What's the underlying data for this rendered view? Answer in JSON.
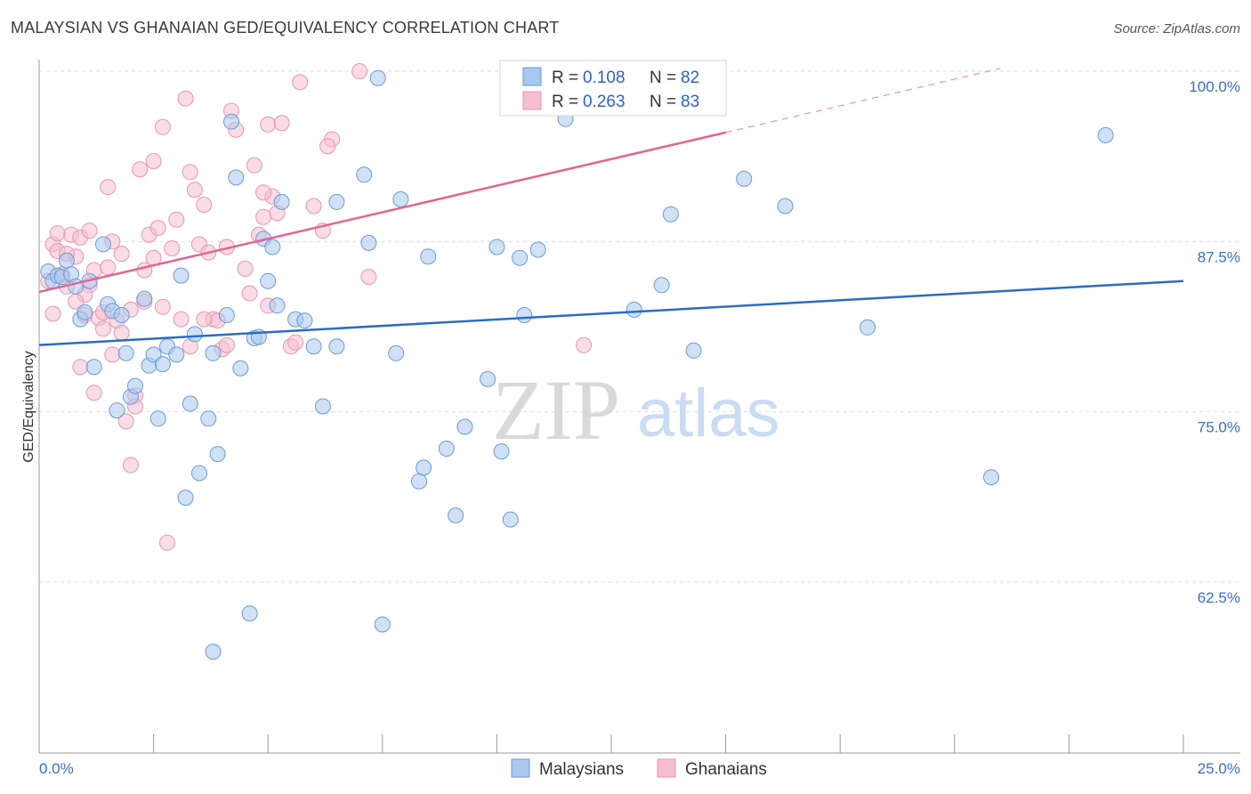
{
  "title": "MALAYSIAN VS GHANAIAN GED/EQUIVALENCY CORRELATION CHART",
  "source": "Source: ZipAtlas.com",
  "watermark": {
    "zip": "ZIP",
    "atlas": "atlas"
  },
  "colors": {
    "blue_fill": "#a9c8ef",
    "blue_stroke": "#6c9ad6",
    "blue_line": "#2b6cc4",
    "pink_fill": "#f6bfd0",
    "pink_stroke": "#e895b1",
    "pink_line": "#e0668f",
    "tick_text": "#3a6fc4",
    "grid": "#dddddd"
  },
  "legend": {
    "rows": [
      {
        "r_label": "R =",
        "r_value": "0.108",
        "n_label": "N =",
        "n_value": "82"
      },
      {
        "r_label": "R =",
        "r_value": "0.263",
        "n_label": "N =",
        "n_value": "83"
      }
    ]
  },
  "bottom_legend": [
    "Malaysians",
    "Ghanaians"
  ],
  "chart_data": {
    "type": "scatter",
    "title": "MALAYSIAN VS GHANAIAN GED/EQUIVALENCY CORRELATION CHART",
    "xlabel": "",
    "ylabel": "GED/Equivalency",
    "xlim": [
      0,
      25
    ],
    "ylim": [
      52.5,
      102.5
    ],
    "x_tick_labels": [
      "0.0%",
      "25.0%"
    ],
    "y_ticks": [
      62.5,
      75.0,
      87.5,
      100.0
    ],
    "y_tick_labels": [
      "62.5%",
      "75.0%",
      "87.5%",
      "100.0%"
    ],
    "grid": true,
    "legend_position": "top",
    "series": [
      {
        "name": "Malaysians",
        "r": 0.108,
        "n": 82,
        "trend": {
          "x": [
            0,
            25
          ],
          "y": [
            79.9,
            84.6
          ]
        },
        "points": [
          [
            0.2,
            85.3
          ],
          [
            0.3,
            84.6
          ],
          [
            0.4,
            85.0
          ],
          [
            0.5,
            84.9
          ],
          [
            0.6,
            86.1
          ],
          [
            0.7,
            85.1
          ],
          [
            0.8,
            84.2
          ],
          [
            0.9,
            81.8
          ],
          [
            1.0,
            82.3
          ],
          [
            1.1,
            84.6
          ],
          [
            1.2,
            78.3
          ],
          [
            1.4,
            87.3
          ],
          [
            1.5,
            82.9
          ],
          [
            1.6,
            82.4
          ],
          [
            1.7,
            75.1
          ],
          [
            1.8,
            82.1
          ],
          [
            1.9,
            79.3
          ],
          [
            2.0,
            76.1
          ],
          [
            2.1,
            76.9
          ],
          [
            2.3,
            83.3
          ],
          [
            2.4,
            78.4
          ],
          [
            2.5,
            79.2
          ],
          [
            2.6,
            74.5
          ],
          [
            2.7,
            78.5
          ],
          [
            2.8,
            79.8
          ],
          [
            3.0,
            79.2
          ],
          [
            3.1,
            85.0
          ],
          [
            3.2,
            68.7
          ],
          [
            3.3,
            75.6
          ],
          [
            3.4,
            80.7
          ],
          [
            3.5,
            70.5
          ],
          [
            3.7,
            74.5
          ],
          [
            3.8,
            79.3
          ],
          [
            3.9,
            71.9
          ],
          [
            4.1,
            82.1
          ],
          [
            4.2,
            96.3
          ],
          [
            4.3,
            92.2
          ],
          [
            4.4,
            78.2
          ],
          [
            4.6,
            60.2
          ],
          [
            4.7,
            80.4
          ],
          [
            4.8,
            80.5
          ],
          [
            4.9,
            87.7
          ],
          [
            5.0,
            84.6
          ],
          [
            5.1,
            87.1
          ],
          [
            5.2,
            82.8
          ],
          [
            5.3,
            90.4
          ],
          [
            5.6,
            81.8
          ],
          [
            5.8,
            81.7
          ],
          [
            6.0,
            79.8
          ],
          [
            6.2,
            75.4
          ],
          [
            6.5,
            90.4
          ],
          [
            6.5,
            79.8
          ],
          [
            7.2,
            87.4
          ],
          [
            7.1,
            92.4
          ],
          [
            7.4,
            99.5
          ],
          [
            7.5,
            59.4
          ],
          [
            7.8,
            79.3
          ],
          [
            7.9,
            90.6
          ],
          [
            8.3,
            69.9
          ],
          [
            8.4,
            70.9
          ],
          [
            8.5,
            86.4
          ],
          [
            8.9,
            72.3
          ],
          [
            9.1,
            67.4
          ],
          [
            9.3,
            73.9
          ],
          [
            9.8,
            77.4
          ],
          [
            10.0,
            87.1
          ],
          [
            10.1,
            72.1
          ],
          [
            10.3,
            67.1
          ],
          [
            10.5,
            86.3
          ],
          [
            10.6,
            82.1
          ],
          [
            10.9,
            86.9
          ],
          [
            11.5,
            96.5
          ],
          [
            13.0,
            82.5
          ],
          [
            13.6,
            84.3
          ],
          [
            13.8,
            89.5
          ],
          [
            14.3,
            79.5
          ],
          [
            15.4,
            92.1
          ],
          [
            16.3,
            90.1
          ],
          [
            18.1,
            81.2
          ],
          [
            20.8,
            70.2
          ],
          [
            23.3,
            95.3
          ],
          [
            3.8,
            57.4
          ]
        ]
      },
      {
        "name": "Ghanaians",
        "r": 0.263,
        "n": 83,
        "trend": {
          "x": [
            0,
            15
          ],
          "y": [
            83.8,
            95.5
          ]
        },
        "trend_dashed": {
          "x": [
            15,
            21
          ],
          "y": [
            95.5,
            100.2
          ]
        },
        "points": [
          [
            0.2,
            84.6
          ],
          [
            0.3,
            87.3
          ],
          [
            0.4,
            86.8
          ],
          [
            0.5,
            85.1
          ],
          [
            0.6,
            84.2
          ],
          [
            0.7,
            88.0
          ],
          [
            0.8,
            86.4
          ],
          [
            0.9,
            87.8
          ],
          [
            1.0,
            82.1
          ],
          [
            1.1,
            84.3
          ],
          [
            1.2,
            85.4
          ],
          [
            1.3,
            81.9
          ],
          [
            1.4,
            82.3
          ],
          [
            1.5,
            91.5
          ],
          [
            1.6,
            87.5
          ],
          [
            1.7,
            81.7
          ],
          [
            1.8,
            80.8
          ],
          [
            1.9,
            74.3
          ],
          [
            2.0,
            71.1
          ],
          [
            2.1,
            76.2
          ],
          [
            2.2,
            92.8
          ],
          [
            2.3,
            85.4
          ],
          [
            2.4,
            88.0
          ],
          [
            2.5,
            93.4
          ],
          [
            2.6,
            88.5
          ],
          [
            2.7,
            95.9
          ],
          [
            2.8,
            65.4
          ],
          [
            2.9,
            87.0
          ],
          [
            3.0,
            89.1
          ],
          [
            3.1,
            81.8
          ],
          [
            3.2,
            98.0
          ],
          [
            3.3,
            92.6
          ],
          [
            3.4,
            91.3
          ],
          [
            3.5,
            87.3
          ],
          [
            3.6,
            90.2
          ],
          [
            3.7,
            86.7
          ],
          [
            3.8,
            81.8
          ],
          [
            3.9,
            81.7
          ],
          [
            4.0,
            79.6
          ],
          [
            4.1,
            87.1
          ],
          [
            4.2,
            97.1
          ],
          [
            4.3,
            95.7
          ],
          [
            4.5,
            85.5
          ],
          [
            4.7,
            93.1
          ],
          [
            4.8,
            88.0
          ],
          [
            4.9,
            89.3
          ],
          [
            5.0,
            96.1
          ],
          [
            5.1,
            90.8
          ],
          [
            5.2,
            89.6
          ],
          [
            5.3,
            96.2
          ],
          [
            5.5,
            79.8
          ],
          [
            5.7,
            99.2
          ],
          [
            6.0,
            90.1
          ],
          [
            6.2,
            88.3
          ],
          [
            6.4,
            95.0
          ],
          [
            7.0,
            100.0
          ],
          [
            7.2,
            84.9
          ],
          [
            1.6,
            79.2
          ],
          [
            1.4,
            81.1
          ],
          [
            2.0,
            82.5
          ],
          [
            2.3,
            83.1
          ],
          [
            2.7,
            82.7
          ],
          [
            3.3,
            79.8
          ],
          [
            4.1,
            79.9
          ],
          [
            4.6,
            83.7
          ],
          [
            5.0,
            82.8
          ],
          [
            5.6,
            80.1
          ],
          [
            6.3,
            94.5
          ],
          [
            11.9,
            79.9
          ],
          [
            1.1,
            88.3
          ],
          [
            1.2,
            76.4
          ],
          [
            0.9,
            78.3
          ],
          [
            1.8,
            86.6
          ],
          [
            2.5,
            86.3
          ],
          [
            0.6,
            86.6
          ],
          [
            0.4,
            88.1
          ],
          [
            0.3,
            82.2
          ],
          [
            1.5,
            85.6
          ],
          [
            3.6,
            81.8
          ],
          [
            1.0,
            83.6
          ],
          [
            2.1,
            75.4
          ],
          [
            4.9,
            91.1
          ],
          [
            0.8,
            83.1
          ]
        ]
      }
    ]
  }
}
